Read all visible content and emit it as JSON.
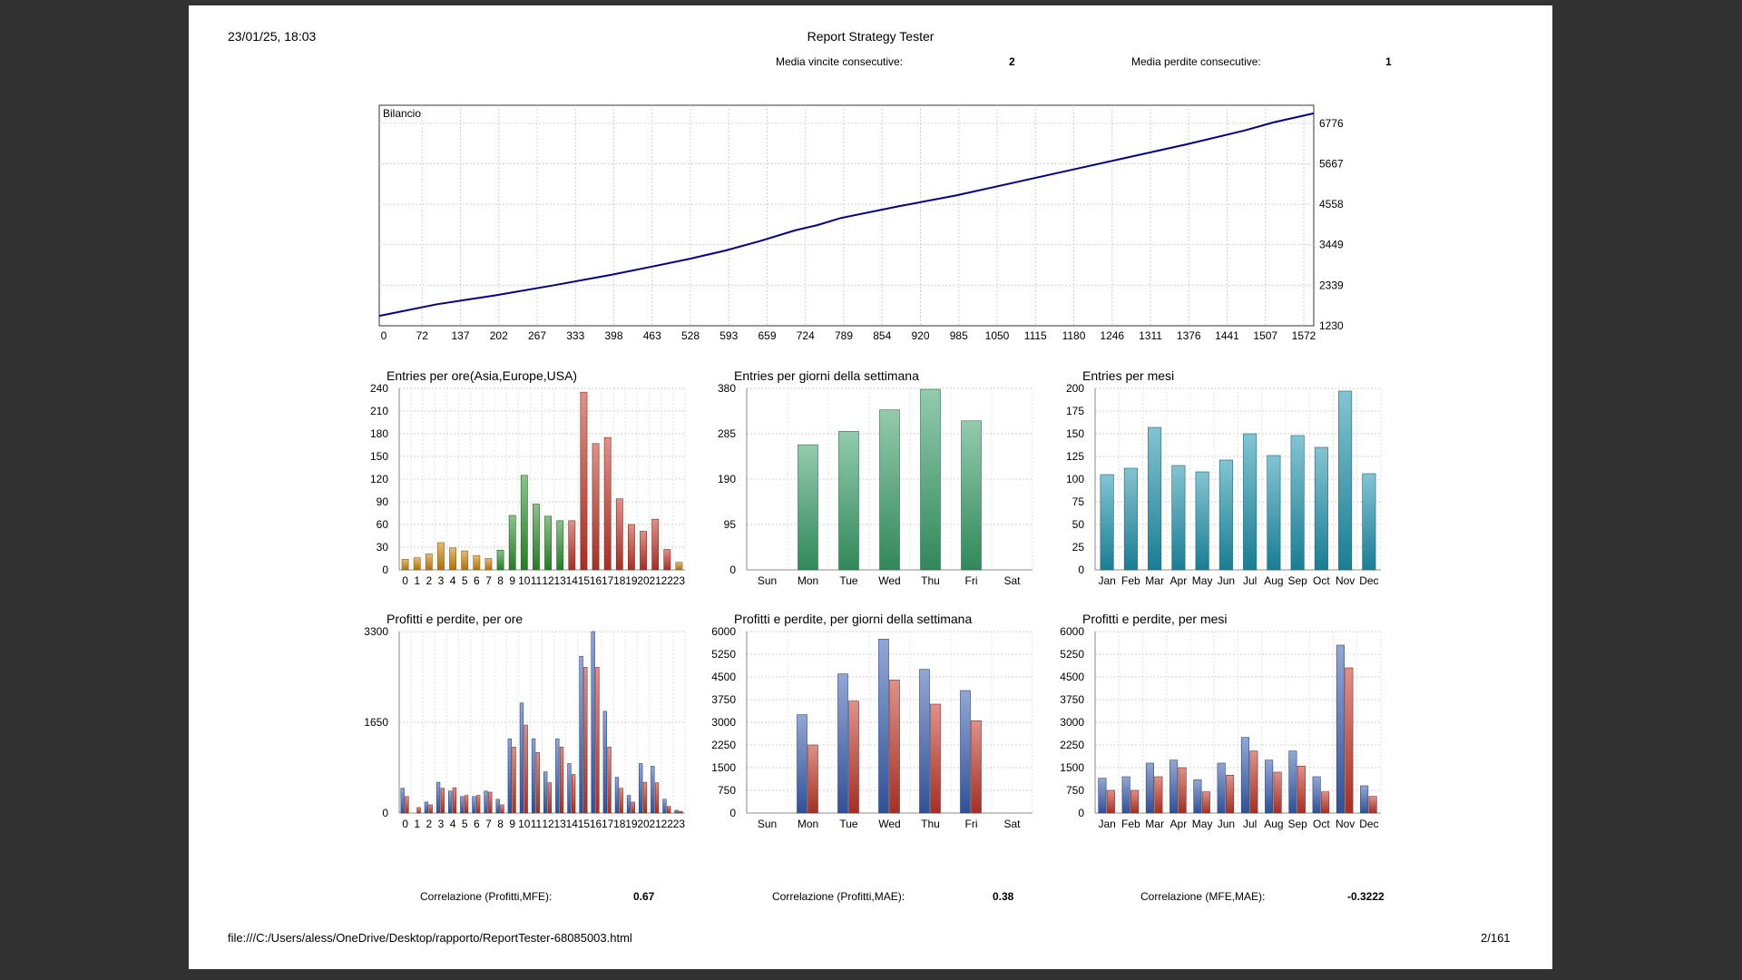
{
  "header": {
    "datetime": "23/01/25, 18:03",
    "title": "Report Strategy Tester",
    "stats": [
      {
        "label": "Media vincite consecutive:",
        "value": "2"
      },
      {
        "label": "Media perdite consecutive:",
        "value": "1"
      }
    ]
  },
  "correlations": [
    {
      "label": "Correlazione (Profitti,MFE):",
      "value": "0.67"
    },
    {
      "label": "Correlazione (Profitti,MAE):",
      "value": "0.38"
    },
    {
      "label": "Correlazione (MFE,MAE):",
      "value": "-0.3222"
    }
  ],
  "footer": {
    "url": "file:///C:/Users/aless/OneDrive/Desktop/rapporto/ReportTester-68085003.html",
    "page": "2/161"
  },
  "chart_data": [
    {
      "id": "balance",
      "type": "line",
      "title": "Bilancio",
      "x_ticks": [
        "0",
        "72",
        "137",
        "202",
        "267",
        "333",
        "398",
        "463",
        "528",
        "593",
        "659",
        "724",
        "789",
        "854",
        "920",
        "985",
        "1050",
        "1115",
        "1180",
        "1246",
        "1311",
        "1376",
        "1441",
        "1507",
        "1572"
      ],
      "y_ticks": [
        "6776",
        "5667",
        "4558",
        "3449",
        "2339",
        "1230"
      ],
      "ylim": [
        1230,
        7270
      ],
      "xlim": [
        0,
        1620
      ],
      "series": [
        {
          "color": "#00008b",
          "x": [
            0,
            100,
            200,
            300,
            400,
            470,
            540,
            600,
            660,
            720,
            760,
            800,
            900,
            1000,
            1100,
            1200,
            1300,
            1400,
            1500,
            1550,
            1620
          ],
          "y": [
            1500,
            1820,
            2060,
            2330,
            2620,
            2840,
            3070,
            3290,
            3550,
            3840,
            3990,
            4180,
            4500,
            4800,
            5150,
            5500,
            5850,
            6200,
            6580,
            6800,
            7050
          ]
        }
      ],
      "grid": true
    },
    {
      "id": "entries-hours",
      "type": "bar",
      "title": "Entries per ore(Asia,Europe,USA)",
      "categories": [
        "0",
        "1",
        "2",
        "3",
        "4",
        "5",
        "6",
        "7",
        "8",
        "9",
        "10",
        "11",
        "12",
        "13",
        "14",
        "15",
        "16",
        "17",
        "18",
        "19",
        "20",
        "21",
        "22",
        "23"
      ],
      "values": [
        14,
        16,
        21,
        36,
        29,
        25,
        19,
        15,
        26,
        72,
        125,
        87,
        71,
        65,
        65,
        235,
        167,
        175,
        94,
        60,
        51,
        67,
        27,
        10
      ],
      "colors": [
        "#c8860e",
        "#c8860e",
        "#c8860e",
        "#c8860e",
        "#c8860e",
        "#c8860e",
        "#c8860e",
        "#c8860e",
        "#2f8f2f",
        "#2f8f2f",
        "#2f8f2f",
        "#2f8f2f",
        "#2f8f2f",
        "#2f8f2f",
        "#c0392b",
        "#c0392b",
        "#c0392b",
        "#c0392b",
        "#c0392b",
        "#c0392b",
        "#c0392b",
        "#c0392b",
        "#c0392b",
        "#c8860e"
      ],
      "y_ticks": [
        0,
        30,
        60,
        90,
        120,
        150,
        180,
        210,
        240
      ],
      "ylim": [
        0,
        240
      ],
      "grid": true
    },
    {
      "id": "entries-weekdays",
      "type": "bar",
      "title": "Entries per giorni della settimana",
      "categories": [
        "Sun",
        "Mon",
        "Tue",
        "Wed",
        "Thu",
        "Fri",
        "Sat"
      ],
      "values": [
        0,
        262,
        290,
        335,
        378,
        312,
        0
      ],
      "colors": [
        "#3aa06a"
      ],
      "y_ticks": [
        0,
        95,
        190,
        285,
        380
      ],
      "ylim": [
        0,
        380
      ],
      "grid": true
    },
    {
      "id": "entries-months",
      "type": "bar",
      "title": "Entries per mesi",
      "categories": [
        "Jan",
        "Feb",
        "Mar",
        "Apr",
        "May",
        "Jun",
        "Jul",
        "Aug",
        "Sep",
        "Oct",
        "Nov",
        "Dec"
      ],
      "values": [
        105,
        112,
        157,
        115,
        108,
        121,
        150,
        126,
        148,
        135,
        197,
        106
      ],
      "colors": [
        "#1f93ad"
      ],
      "y_ticks": [
        0,
        25,
        50,
        75,
        100,
        125,
        150,
        175,
        200
      ],
      "ylim": [
        0,
        200
      ],
      "grid": true
    },
    {
      "id": "pl-hours",
      "type": "bar",
      "title": "Profitti e perdite, per ore",
      "categories": [
        "0",
        "1",
        "2",
        "3",
        "4",
        "5",
        "6",
        "7",
        "8",
        "9",
        "10",
        "11",
        "12",
        "13",
        "14",
        "15",
        "16",
        "17",
        "18",
        "19",
        "20",
        "21",
        "22",
        "23"
      ],
      "series": [
        {
          "name": "profit",
          "color": "#3a5fb0",
          "values": [
            450,
            0,
            200,
            560,
            400,
            300,
            300,
            400,
            250,
            1350,
            2000,
            1350,
            750,
            1350,
            900,
            2850,
            3300,
            1850,
            650,
            320,
            900,
            850,
            250,
            50
          ]
        },
        {
          "name": "loss",
          "color": "#c0392b",
          "values": [
            300,
            100,
            150,
            450,
            460,
            320,
            320,
            380,
            150,
            1200,
            1600,
            1100,
            550,
            1200,
            700,
            2650,
            2650,
            1200,
            450,
            200,
            560,
            550,
            120,
            30
          ]
        }
      ],
      "y_ticks": [
        0,
        1650,
        3300
      ],
      "ylim": [
        0,
        3300
      ],
      "grid": true
    },
    {
      "id": "pl-weekdays",
      "type": "bar",
      "title": "Profitti e perdite, per giorni della settimana",
      "categories": [
        "Sun",
        "Mon",
        "Tue",
        "Wed",
        "Thu",
        "Fri",
        "Sat"
      ],
      "series": [
        {
          "name": "profit",
          "color": "#3a5fb0",
          "values": [
            0,
            3250,
            4600,
            5750,
            4750,
            4050,
            0
          ]
        },
        {
          "name": "loss",
          "color": "#c0392b",
          "values": [
            0,
            2250,
            3700,
            4400,
            3600,
            3050,
            0
          ]
        }
      ],
      "y_ticks": [
        0,
        750,
        1500,
        2250,
        3000,
        3750,
        4500,
        5250,
        6000
      ],
      "ylim": [
        0,
        6000
      ],
      "grid": true
    },
    {
      "id": "pl-months",
      "type": "bar",
      "title": "Profitti e perdite, per mesi",
      "categories": [
        "Jan",
        "Feb",
        "Mar",
        "Apr",
        "May",
        "Jun",
        "Jul",
        "Aug",
        "Sep",
        "Oct",
        "Nov",
        "Dec"
      ],
      "series": [
        {
          "name": "profit",
          "color": "#3a5fb0",
          "values": [
            1150,
            1200,
            1650,
            1750,
            1100,
            1650,
            2500,
            1750,
            2050,
            1200,
            5550,
            900
          ]
        },
        {
          "name": "loss",
          "color": "#c0392b",
          "values": [
            750,
            750,
            1200,
            1500,
            700,
            1250,
            2050,
            1350,
            1550,
            700,
            4800,
            550
          ]
        }
      ],
      "y_ticks": [
        0,
        750,
        1500,
        2250,
        3000,
        3750,
        4500,
        5250,
        6000
      ],
      "ylim": [
        0,
        6000
      ],
      "grid": true
    }
  ]
}
